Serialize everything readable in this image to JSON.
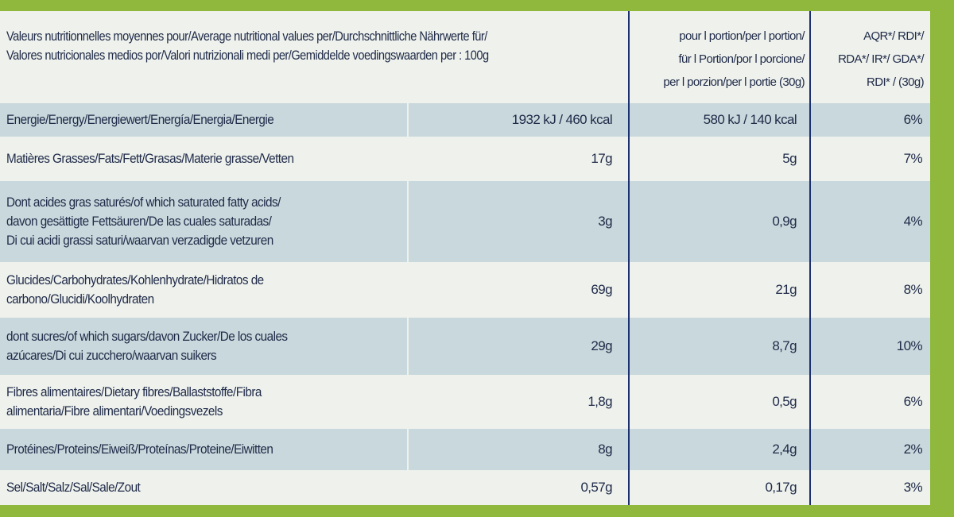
{
  "header": {
    "description": [
      "Valeurs nutritionnelles moyennes pour/Average nutritional values per/Durchschnittliche Nährwerte für/",
      "Valores nutricionales medios por/Valori nutrizionali medi per/Gemiddelde voedingswaarden per : 100g"
    ],
    "portion": [
      "pour l portion/per l portion/",
      "für l Portion/por l porcione/",
      "per l porzion/per l portie (30g)"
    ],
    "rdi": [
      "AQR*/ RDI*/",
      "RDA*/ IR*/ GDA*/",
      "RDI* / (30g)"
    ]
  },
  "rows": [
    {
      "label": [
        "Energie/Energy/Energiewert/Energía/Energia/Energie"
      ],
      "per100g": "1932 kJ / 460 kcal",
      "portion": "580 kJ / 140 kcal",
      "rdi": "6%"
    },
    {
      "label": [
        "Matières Grasses/Fats/Fett/Grasas/Materie grasse/Vetten"
      ],
      "per100g": "17g",
      "portion": "5g",
      "rdi": "7%"
    },
    {
      "label": [
        "Dont acides gras saturés/of which saturated fatty acids/",
        "davon gesättigte Fettsäuren/De las cuales saturadas/",
        "Di cui acidi grassi saturi/waarvan verzadigde vetzuren"
      ],
      "per100g": "3g",
      "portion": "0,9g",
      "rdi": "4%"
    },
    {
      "label": [
        "Glucides/Carbohydrates/Kohlenhydrate/Hidratos de",
        "carbono/Glucidi/Koolhydraten"
      ],
      "per100g": "69g",
      "portion": "21g",
      "rdi": "8%"
    },
    {
      "label": [
        "dont sucres/of which sugars/davon Zucker/De los cuales",
        "azúcares/Di cui zucchero/waarvan suikers"
      ],
      "per100g": "29g",
      "portion": "8,7g",
      "rdi": "10%"
    },
    {
      "label": [
        "Fibres alimentaires/Dietary fibres/Ballaststoffe/Fibra",
        "alimentaria/Fibre alimentari/Voedingsvezels"
      ],
      "per100g": "1,8g",
      "portion": "0,5g",
      "rdi": "6%"
    },
    {
      "label": [
        "Protéines/Proteins/Eiweiß/Proteínas/Proteine/Eiwitten"
      ],
      "per100g": "8g",
      "portion": "2,4g",
      "rdi": "2%"
    },
    {
      "label": [
        "Sel/Salt/Salz/Sal/Sale/Zout"
      ],
      "per100g": "0,57g",
      "portion": "0,17g",
      "rdi": "3%"
    }
  ]
}
